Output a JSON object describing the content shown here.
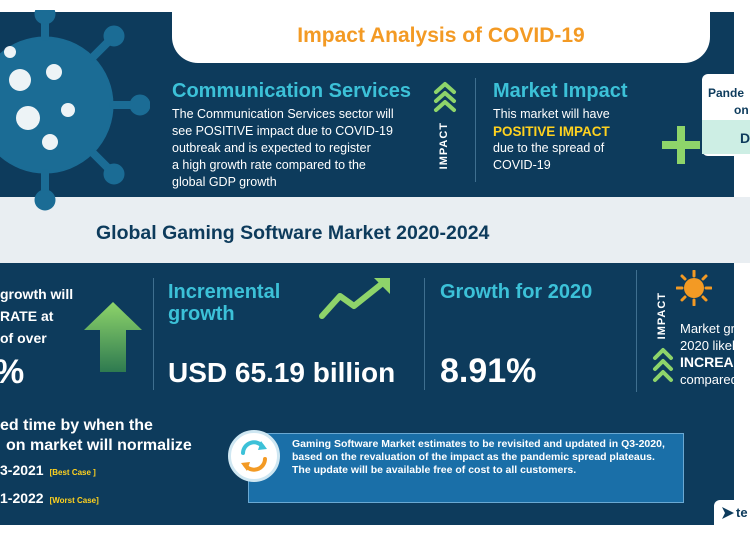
{
  "header": {
    "title": "Impact Analysis of COVID-19"
  },
  "communication": {
    "heading": "Communication Services",
    "lines": [
      "The Communication Services sector will",
      "see POSITIVE impact due to COVID-19",
      "outbreak and is expected to register",
      "a high growth rate compared to the",
      "global GDP growth"
    ]
  },
  "impact_label": "IMPACT",
  "market_impact": {
    "heading": "Market Impact",
    "line1": "This market will have",
    "highlight": "POSITIVE IMPACT",
    "line3": "due to the spread of",
    "line4": "COVID-19"
  },
  "pandemic_card": {
    "line1": "Pande",
    "line2": "on",
    "tag": "D"
  },
  "market": {
    "title": "Global Gaming Software Market 2020-2024"
  },
  "kpis": {
    "cagr_line1": "growth will",
    "cagr_line2": "RATE at",
    "cagr_line3": "of over",
    "cagr_value": "%",
    "incremental_h1": "Incremental",
    "incremental_h2": "growth",
    "incremental_value": "USD 65.19 billion",
    "growth_h": "Growth for 2020",
    "growth_value": "8.91%",
    "impact_label": "IMPACT",
    "market_line1": "Market gr",
    "market_line2": "2020 likely",
    "market_line3": "INCREASE",
    "market_line4": "compared"
  },
  "normalize": {
    "line1": "ed time by when the",
    "line2": "on market will normalize",
    "best_value": "3-2021",
    "best_tag": "[Best Case ]",
    "worst_value": "1-2022",
    "worst_tag": "[Worst Case]"
  },
  "note": {
    "text": "Gaming Software Market estimates to be revisited and updated in Q3-2020, based on the revaluation of the impact as the pandemic spread plateaus. The update will be available free of cost to all customers."
  },
  "brand": {
    "logo_text": "te"
  },
  "colors": {
    "navy": "#0d3b5c",
    "cyan": "#3cc1d8",
    "orange": "#f39a24",
    "yellow": "#ffd21f",
    "green": "#8ed46a"
  }
}
